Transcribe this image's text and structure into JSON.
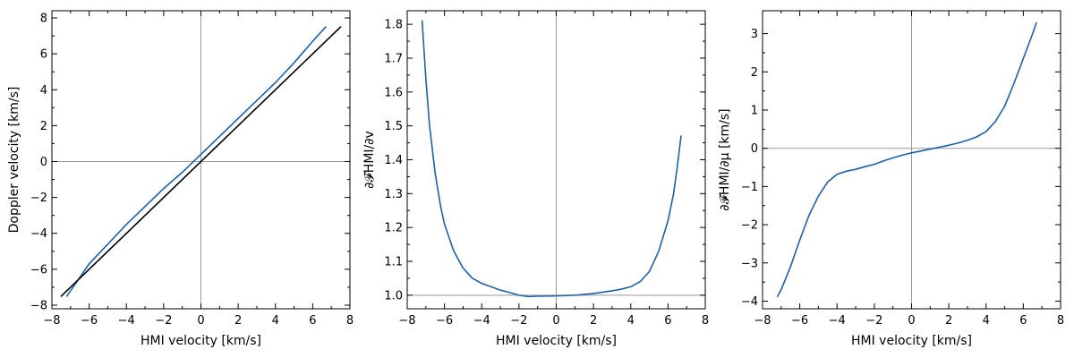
{
  "colors": {
    "series_blue": "#1f5fa6",
    "series_black": "#000000",
    "refline": "#999999"
  },
  "chart_data": [
    {
      "type": "line",
      "xlabel": "HMI velocity [km/s]",
      "ylabel": "Doppler velocity [km/s]",
      "xlim": [
        -8,
        8
      ],
      "ylim": [
        -8.2,
        8.4
      ],
      "xticks": [
        -8,
        -6,
        -4,
        -2,
        0,
        2,
        4,
        6,
        8
      ],
      "yticks": [
        -8,
        -6,
        -4,
        -2,
        0,
        2,
        4,
        6,
        8
      ],
      "reflines": {
        "x": 0,
        "y": 0
      },
      "series": [
        {
          "color": "#1f5fa6",
          "x": [
            -7.2,
            -6.8,
            -6.4,
            -6.0,
            -5.0,
            -4.0,
            -3.0,
            -2.0,
            -1.0,
            0.0,
            1.0,
            2.0,
            3.0,
            4.0,
            5.0,
            6.0,
            6.7
          ],
          "y": [
            -7.5,
            -6.9,
            -6.3,
            -5.7,
            -4.6,
            -3.5,
            -2.5,
            -1.5,
            -0.6,
            0.4,
            1.4,
            2.4,
            3.4,
            4.4,
            5.5,
            6.7,
            7.5
          ]
        },
        {
          "color": "#000000",
          "x": [
            -7.5,
            7.5
          ],
          "y": [
            -7.5,
            7.5
          ]
        }
      ]
    },
    {
      "type": "line",
      "xlabel": "HMI velocity [km/s]",
      "ylabel": "∂𝓕HMI/∂v",
      "xlim": [
        -8,
        8
      ],
      "ylim": [
        0.96,
        1.84
      ],
      "xticks": [
        -8,
        -6,
        -4,
        -2,
        0,
        2,
        4,
        6,
        8
      ],
      "yticks": [
        1.0,
        1.1,
        1.2,
        1.3,
        1.4,
        1.5,
        1.6,
        1.7,
        1.8
      ],
      "yticklabels": [
        "1.0",
        "1.1",
        "1.2",
        "1.3",
        "1.4",
        "1.5",
        "1.6",
        "1.7",
        "1.8"
      ],
      "reflines": {
        "x": 0,
        "y": 1.0
      },
      "series": [
        {
          "color": "#1f5fa6",
          "x": [
            -7.2,
            -7.0,
            -6.8,
            -6.5,
            -6.2,
            -6.0,
            -5.5,
            -5.0,
            -4.5,
            -4.0,
            -3.5,
            -3.0,
            -2.5,
            -2.0,
            -1.5,
            -1.0,
            0.0,
            1.0,
            2.0,
            3.0,
            3.5,
            4.0,
            4.5,
            5.0,
            5.5,
            6.0,
            6.3,
            6.5,
            6.7
          ],
          "y": [
            1.81,
            1.64,
            1.5,
            1.36,
            1.26,
            1.21,
            1.13,
            1.08,
            1.05,
            1.035,
            1.025,
            1.015,
            1.008,
            1.0,
            0.996,
            0.997,
            0.998,
            1.0,
            1.005,
            1.013,
            1.018,
            1.025,
            1.04,
            1.07,
            1.13,
            1.22,
            1.3,
            1.38,
            1.47
          ]
        }
      ]
    },
    {
      "type": "line",
      "xlabel": "HMI velocity [km/s]",
      "ylabel": "∂𝓕HMI/∂μ [km/s]",
      "xlim": [
        -8,
        8
      ],
      "ylim": [
        -4.2,
        3.6
      ],
      "xticks": [
        -8,
        -6,
        -4,
        -2,
        0,
        2,
        4,
        6,
        8
      ],
      "yticks": [
        -4,
        -3,
        -2,
        -1,
        0,
        1,
        2,
        3
      ],
      "reflines": {
        "x": 0,
        "y": 0
      },
      "series": [
        {
          "color": "#1f5fa6",
          "x": [
            -7.2,
            -7.0,
            -6.5,
            -6.0,
            -5.5,
            -5.0,
            -4.5,
            -4.0,
            -3.5,
            -3.0,
            -2.5,
            -2.0,
            -1.5,
            -1.0,
            -0.5,
            0.0,
            0.5,
            1.0,
            1.5,
            2.0,
            2.5,
            3.0,
            3.5,
            4.0,
            4.5,
            5.0,
            5.5,
            6.0,
            6.5,
            6.7
          ],
          "y": [
            -3.88,
            -3.7,
            -3.1,
            -2.4,
            -1.75,
            -1.25,
            -0.88,
            -0.68,
            -0.6,
            -0.55,
            -0.48,
            -0.42,
            -0.33,
            -0.25,
            -0.18,
            -0.12,
            -0.07,
            -0.02,
            0.03,
            0.08,
            0.14,
            0.21,
            0.3,
            0.44,
            0.7,
            1.1,
            1.7,
            2.35,
            3.0,
            3.28
          ]
        }
      ]
    }
  ]
}
